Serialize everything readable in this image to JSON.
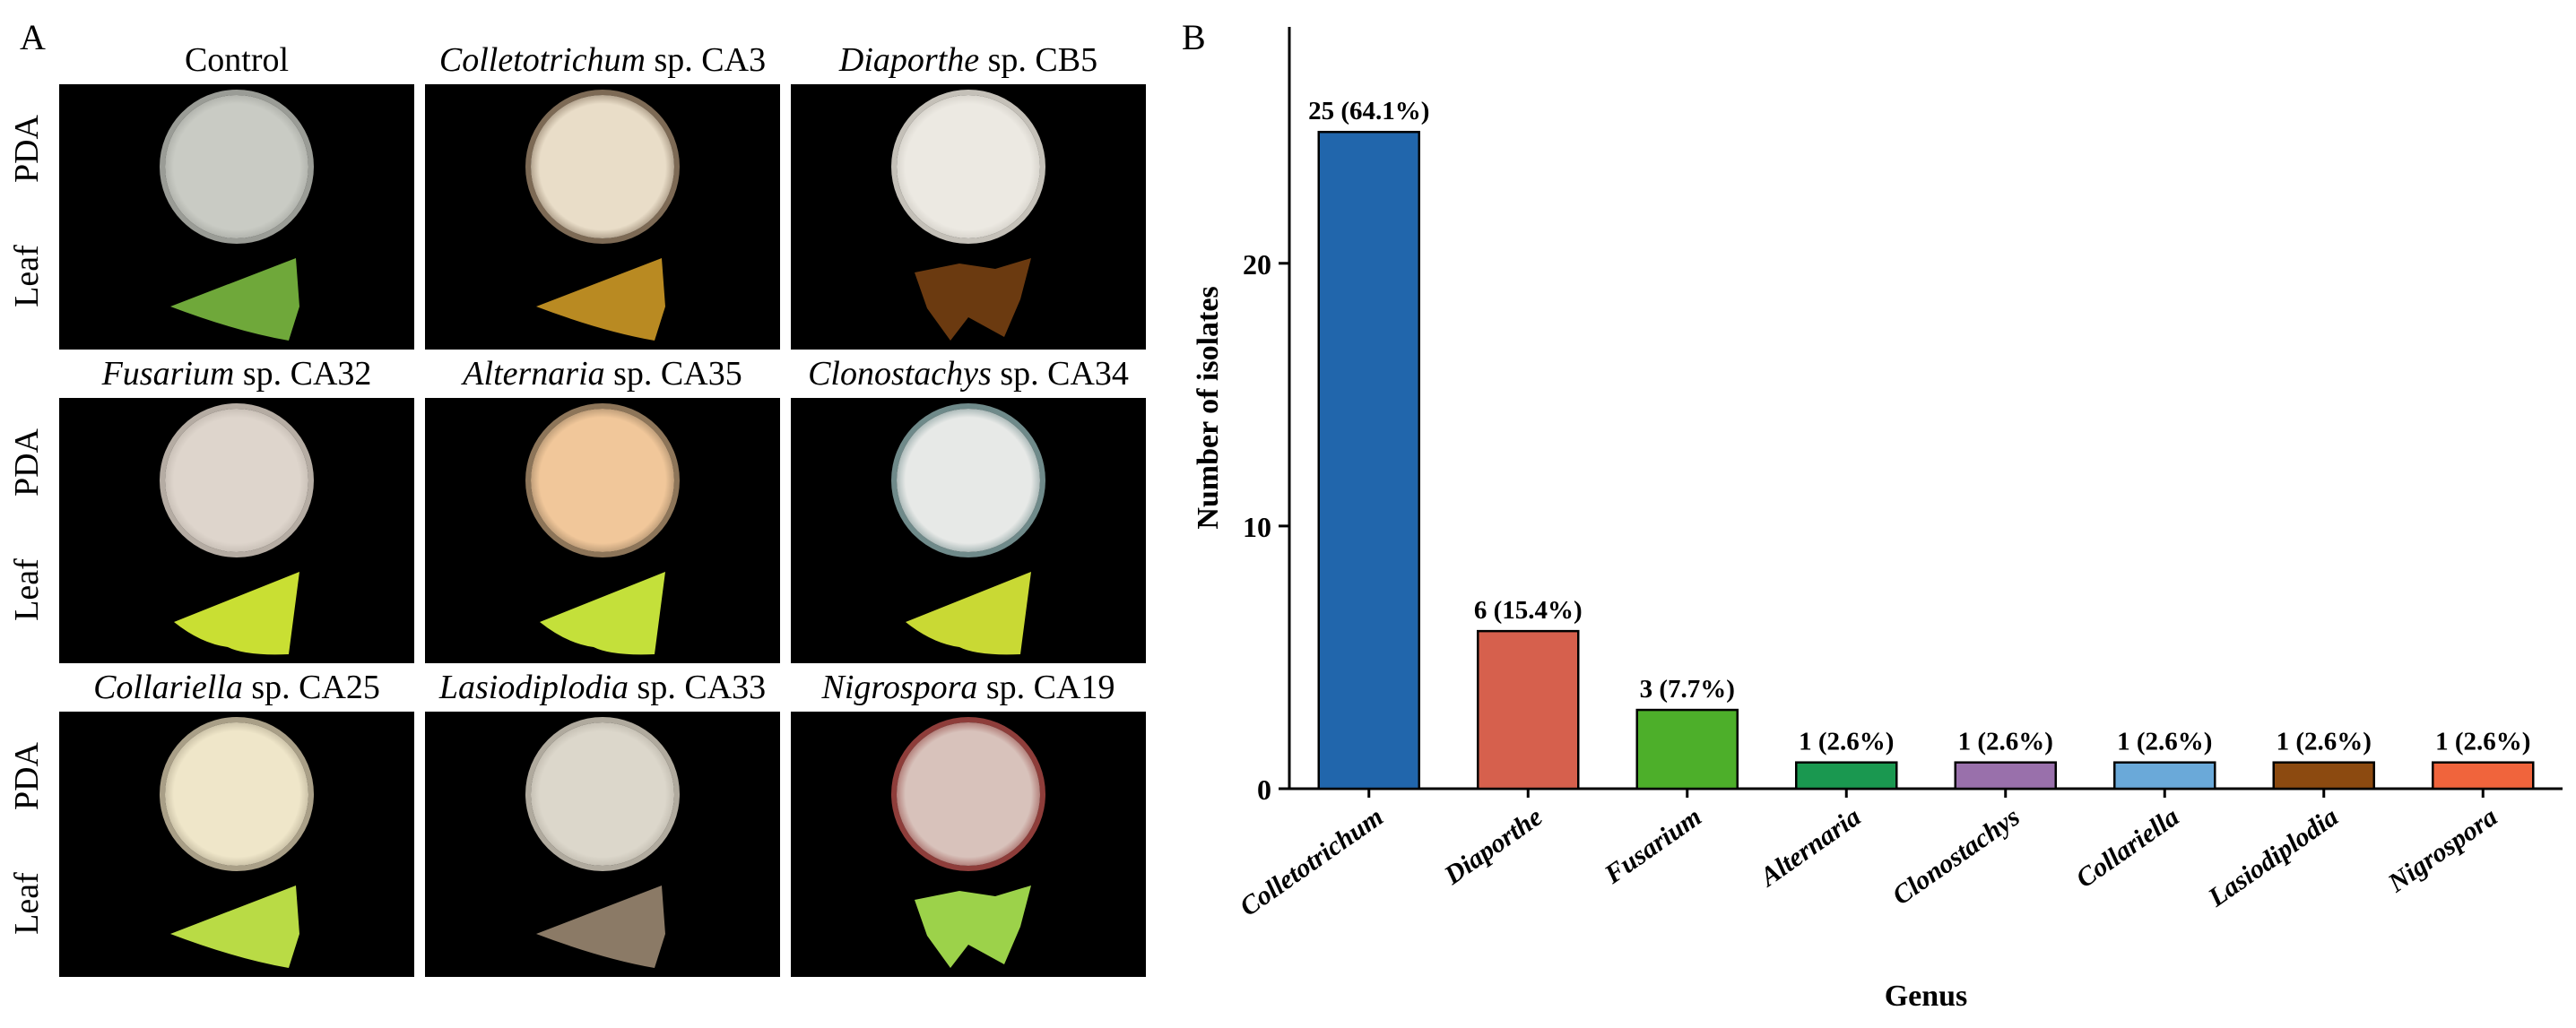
{
  "panel_a": {
    "letter": "A",
    "row_labels": {
      "pda": "PDA",
      "leaf": "Leaf"
    },
    "cells": [
      {
        "genus": "",
        "rest": "Control",
        "plate_color": "#c9cbc4",
        "rim": "#9a9c96",
        "leaf_color": "#6fa83a",
        "leaf_shape": "tri"
      },
      {
        "genus": "Colletotrichum",
        "rest": " sp. CA3",
        "plate_color": "#e9ddc8",
        "rim": "#7d6a55",
        "leaf_color": "#b98a22",
        "leaf_shape": "tri"
      },
      {
        "genus": "Diaporthe",
        "rest": " sp. CB5",
        "plate_color": "#ece9e2",
        "rim": "#c4c0b8",
        "leaf_color": "#6b3a10",
        "leaf_shape": "crumpled"
      },
      {
        "genus": "Fusarium",
        "rest": " sp. CA32",
        "plate_color": "#ded5cc",
        "rim": "#b5aca3",
        "leaf_color": "#c9df33",
        "leaf_shape": "heart"
      },
      {
        "genus": "Alternaria",
        "rest": " sp. CA35",
        "plate_color": "#f1c79a",
        "rim": "#8d7559",
        "leaf_color": "#c4e03a",
        "leaf_shape": "heart"
      },
      {
        "genus": "Clonostachys",
        "rest": " sp. CA34",
        "plate_color": "#e7e9e7",
        "rim": "#6f8a8a",
        "leaf_color": "#c9d934",
        "leaf_shape": "heart"
      },
      {
        "genus": "Collariella",
        "rest": " sp. CA25",
        "plate_color": "#efe6c9",
        "rim": "#a99f87",
        "leaf_color": "#b9db45",
        "leaf_shape": "tri"
      },
      {
        "genus": "Lasiodiplodia",
        "rest": " sp. CA33",
        "plate_color": "#dcd7cb",
        "rim": "#b0aa9e",
        "leaf_color": "#8b7a66",
        "leaf_shape": "tri"
      },
      {
        "genus": "Nigrospora",
        "rest": " sp. CA19",
        "plate_color": "#d8c2bb",
        "rim": "#8e3d3a",
        "leaf_color": "#9cd24a",
        "leaf_shape": "crumpled"
      }
    ]
  },
  "chart_data": {
    "type": "bar",
    "panel_letter": "B",
    "categories": [
      "Colletotrichum",
      "Diaporthe",
      "Fusarium",
      "Alternaria",
      "Clonostachys",
      "Collariella",
      "Lasiodiplodia",
      "Nigrospora"
    ],
    "values": [
      25,
      6,
      3,
      1,
      1,
      1,
      1,
      1
    ],
    "data_labels": [
      "25 (64.1%)",
      "6 (15.4%)",
      "3 (7.7%)",
      "1 (2.6%)",
      "1 (2.6%)",
      "1 (2.6%)",
      "1 (2.6%)",
      "1 (2.6%)"
    ],
    "colors": [
      "#2166ac",
      "#d6604d",
      "#4daf2a",
      "#1a9850",
      "#9970ab",
      "#6aa9d9",
      "#8c4a10",
      "#f0643c"
    ],
    "xlabel": "Genus",
    "ylabel": "Number of isolates",
    "ylim": [
      0,
      29
    ],
    "yticks": [
      0,
      10,
      20
    ],
    "grid": false
  }
}
